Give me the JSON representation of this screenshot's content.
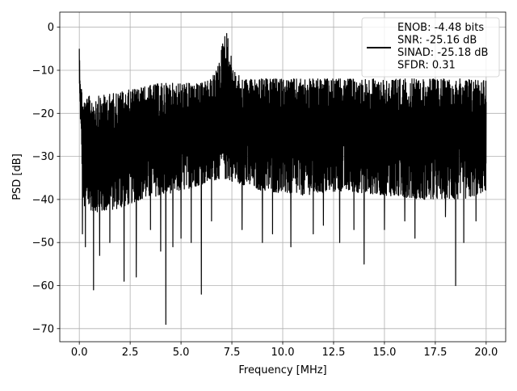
{
  "chart_data": {
    "type": "line",
    "title": "",
    "xlabel": "Frequency [MHz]",
    "ylabel": "PSD [dB]",
    "xlim": [
      -0.96,
      20.96
    ],
    "ylim": [
      -73.04,
      3.51
    ],
    "xticks": [
      0.0,
      2.5,
      5.0,
      7.5,
      10.0,
      12.5,
      15.0,
      17.5,
      20.0
    ],
    "xtick_labels": [
      "0.0",
      "2.5",
      "5.0",
      "7.5",
      "10.0",
      "12.5",
      "15.0",
      "17.5",
      "20.0"
    ],
    "yticks": [
      0,
      -10,
      -20,
      -30,
      -40,
      -50,
      -60,
      -70
    ],
    "ytick_labels": [
      "0",
      "−10",
      "−20",
      "−30",
      "−40",
      "−50",
      "−60",
      "−70"
    ],
    "grid": true,
    "legend_position": "top-right",
    "series": [
      {
        "name": "ENOB: -4.48 bits\nSNR: -25.16 dB\nSINAD: -25.18 dB\nSFDR: 0.31",
        "color": "#000000",
        "envelope_top": [
          [
            0.0,
            -5
          ],
          [
            0.05,
            -12
          ],
          [
            0.2,
            -17
          ],
          [
            0.5,
            -16
          ],
          [
            1.0,
            -16
          ],
          [
            2.0,
            -15
          ],
          [
            3.0,
            -14
          ],
          [
            4.0,
            -13
          ],
          [
            5.0,
            -13
          ],
          [
            6.0,
            -13
          ],
          [
            6.5,
            -12
          ],
          [
            6.9,
            -8
          ],
          [
            7.05,
            -3
          ],
          [
            7.15,
            -1
          ],
          [
            7.25,
            -1
          ],
          [
            7.4,
            -5
          ],
          [
            7.6,
            -10
          ],
          [
            8.0,
            -12
          ],
          [
            10.0,
            -12
          ],
          [
            12.0,
            -12
          ],
          [
            14.0,
            -12
          ],
          [
            16.0,
            -12
          ],
          [
            18.0,
            -12
          ],
          [
            20.0,
            -12
          ]
        ],
        "envelope_bottom": [
          [
            0.0,
            -14
          ],
          [
            0.2,
            -42
          ],
          [
            1.0,
            -43
          ],
          [
            2.0,
            -42
          ],
          [
            3.0,
            -40
          ],
          [
            5.0,
            -38
          ],
          [
            7.0,
            -35
          ],
          [
            9.0,
            -38
          ],
          [
            11.0,
            -39
          ],
          [
            13.0,
            -38
          ],
          [
            15.0,
            -39
          ],
          [
            17.0,
            -40
          ],
          [
            19.0,
            -40
          ],
          [
            20.0,
            -38
          ]
        ],
        "dips": [
          [
            0.15,
            -48
          ],
          [
            0.3,
            -51
          ],
          [
            0.7,
            -61
          ],
          [
            1.0,
            -53
          ],
          [
            1.5,
            -50
          ],
          [
            2.2,
            -59
          ],
          [
            2.8,
            -58
          ],
          [
            3.5,
            -47
          ],
          [
            4.0,
            -52
          ],
          [
            4.25,
            -69
          ],
          [
            4.6,
            -51
          ],
          [
            5.0,
            -49
          ],
          [
            5.5,
            -50
          ],
          [
            6.0,
            -62
          ],
          [
            6.5,
            -45
          ],
          [
            8.0,
            -47
          ],
          [
            9.0,
            -50
          ],
          [
            9.5,
            -48
          ],
          [
            10.4,
            -51
          ],
          [
            11.5,
            -48
          ],
          [
            12.0,
            -46
          ],
          [
            12.8,
            -50
          ],
          [
            13.5,
            -47
          ],
          [
            14.0,
            -55
          ],
          [
            15.0,
            -47
          ],
          [
            16.0,
            -45
          ],
          [
            16.5,
            -49
          ],
          [
            18.0,
            -44
          ],
          [
            18.5,
            -60
          ],
          [
            18.9,
            -50
          ],
          [
            19.5,
            -45
          ]
        ]
      }
    ]
  }
}
